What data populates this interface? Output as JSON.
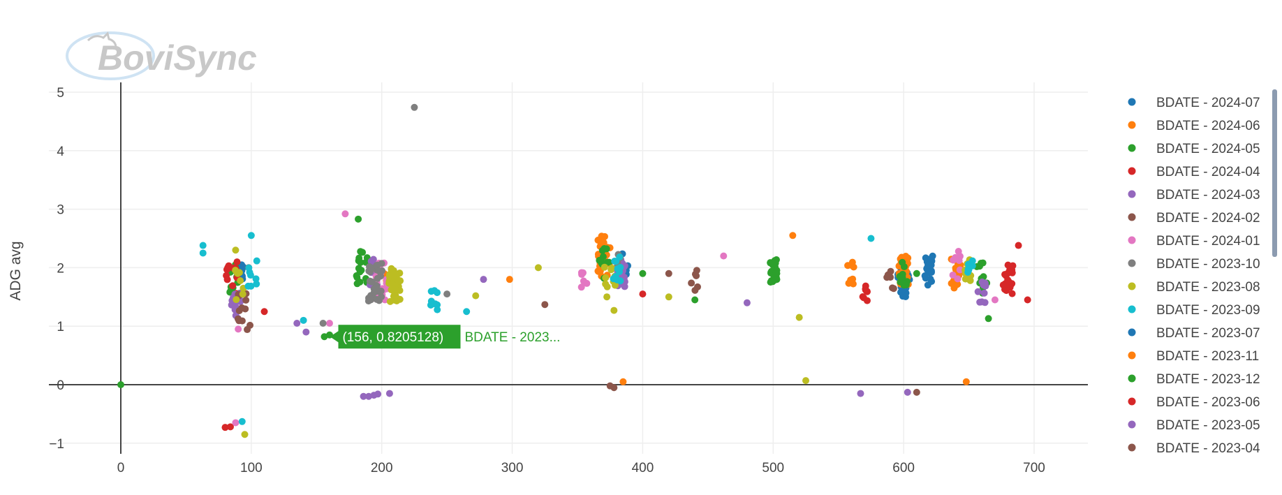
{
  "logo": {
    "text": "BoviSync"
  },
  "chart_data": {
    "type": "scatter",
    "title": "",
    "xlabel": "",
    "ylabel": "ADG avg",
    "xlim": [
      -70,
      740
    ],
    "ylim": [
      -1.2,
      5.2
    ],
    "xticks": [
      0,
      100,
      200,
      300,
      400,
      500,
      600,
      700
    ],
    "yticks": [
      -1,
      0,
      1,
      2,
      3,
      4,
      5
    ],
    "ytick_labels": [
      "−1",
      "0",
      "1",
      "2",
      "3",
      "4",
      "5"
    ],
    "grid": true,
    "legend_position": "right",
    "series": [
      {
        "name": "BDATE - 2024-07",
        "color": "#1f77b4",
        "clusters": [
          [
            92,
            1.9,
            0.15,
            14
          ],
          [
            385,
            2.05,
            0.25,
            8
          ],
          [
            600,
            1.8,
            0.3,
            26
          ],
          [
            620,
            1.95,
            0.25,
            22
          ]
        ]
      },
      {
        "name": "BDATE - 2024-06",
        "color": "#ff7f0e",
        "clusters": [
          [
            370,
            2.2,
            0.35,
            28
          ],
          [
            600,
            1.95,
            0.25,
            40
          ],
          [
            640,
            1.9,
            0.25,
            26
          ],
          [
            200,
            1.9,
            0.4,
            8
          ],
          [
            560,
            1.9,
            0.2,
            8
          ]
        ],
        "points": [
          [
            648,
            0.05
          ],
          [
            385,
            0.05
          ],
          [
            515,
            2.55
          ],
          [
            298,
            1.8
          ]
        ]
      },
      {
        "name": "BDATE - 2024-05",
        "color": "#2ca02c",
        "clusters": [
          [
            88,
            1.8,
            0.3,
            10
          ],
          [
            185,
            2.0,
            0.3,
            16
          ],
          [
            370,
            2.1,
            0.3,
            12
          ],
          [
            500,
            1.95,
            0.2,
            24
          ],
          [
            600,
            1.9,
            0.2,
            12
          ],
          [
            660,
            1.85,
            0.3,
            10
          ]
        ],
        "points": [
          [
            0,
            0.0
          ],
          [
            182,
            2.83
          ],
          [
            665,
            1.13
          ],
          [
            440,
            1.45
          ],
          [
            610,
            1.9
          ],
          [
            160,
            0.85
          ],
          [
            400,
            1.9
          ]
        ]
      },
      {
        "name": "BDATE - 2024-04",
        "color": "#d62728",
        "clusters": [
          [
            85,
            1.75,
            0.35,
            14
          ],
          [
            680,
            1.8,
            0.25,
            20
          ],
          [
            570,
            1.55,
            0.15,
            8
          ]
        ],
        "points": [
          [
            80,
            -0.73
          ],
          [
            84,
            -0.72
          ],
          [
            110,
            1.25
          ],
          [
            400,
            1.55
          ],
          [
            688,
            2.38
          ],
          [
            695,
            1.45
          ]
        ]
      },
      {
        "name": "BDATE - 2024-03",
        "color": "#9467bd",
        "clusters": [
          [
            88,
            1.35,
            0.25,
            14
          ],
          [
            383,
            1.9,
            0.25,
            22
          ],
          [
            660,
            1.6,
            0.2,
            10
          ],
          [
            196,
            1.9,
            0.35,
            12
          ]
        ],
        "points": [
          [
            190,
            -0.2
          ],
          [
            194,
            -0.18
          ],
          [
            197,
            -0.16
          ],
          [
            206,
            -0.15
          ],
          [
            186,
            -0.2
          ],
          [
            567,
            -0.15
          ],
          [
            603,
            -0.13
          ],
          [
            480,
            1.4
          ],
          [
            278,
            1.8
          ],
          [
            135,
            1.05
          ],
          [
            142,
            0.9
          ]
        ]
      },
      {
        "name": "BDATE - 2024-02",
        "color": "#8c564b",
        "clusters": [
          [
            95,
            1.25,
            0.35,
            12
          ],
          [
            590,
            1.8,
            0.2,
            6
          ],
          [
            440,
            1.8,
            0.2,
            6
          ]
        ],
        "points": [
          [
            375,
            -0.02
          ],
          [
            378,
            -0.05
          ],
          [
            610,
            -0.13
          ],
          [
            325,
            1.37
          ],
          [
            98,
            2.0
          ],
          [
            420,
            1.9
          ]
        ]
      },
      {
        "name": "BDATE - 2024-01",
        "color": "#e377c2",
        "clusters": [
          [
            200,
            1.8,
            0.35,
            26
          ],
          [
            355,
            1.85,
            0.2,
            6
          ],
          [
            640,
            2.05,
            0.25,
            8
          ]
        ],
        "points": [
          [
            172,
            2.92
          ],
          [
            88,
            -0.65
          ],
          [
            90,
            0.95
          ],
          [
            670,
            1.45
          ],
          [
            462,
            2.2
          ],
          [
            160,
            1.05
          ]
        ]
      },
      {
        "name": "BDATE - 2023-10",
        "color": "#7f7f7f",
        "clusters": [
          [
            195,
            1.75,
            0.35,
            30
          ],
          [
            380,
            2.05,
            0.2,
            6
          ]
        ],
        "points": [
          [
            225,
            4.74
          ],
          [
            155,
            1.05
          ],
          [
            250,
            1.55
          ]
        ]
      },
      {
        "name": "BDATE - 2023-08",
        "color": "#bcbd22",
        "clusters": [
          [
            210,
            1.7,
            0.3,
            40
          ],
          [
            375,
            1.8,
            0.3,
            12
          ],
          [
            92,
            1.7,
            0.3,
            8
          ],
          [
            650,
            1.95,
            0.2,
            10
          ]
        ],
        "points": [
          [
            95,
            -0.85
          ],
          [
            525,
            0.07
          ],
          [
            520,
            1.15
          ],
          [
            378,
            1.27
          ],
          [
            320,
            2.0
          ],
          [
            272,
            1.52
          ],
          [
            88,
            2.3
          ],
          [
            420,
            1.5
          ]
        ]
      },
      {
        "name": "BDATE - 2023-09",
        "color": "#17becf",
        "clusters": [
          [
            100,
            1.85,
            0.3,
            8
          ],
          [
            380,
            2.0,
            0.25,
            10
          ],
          [
            650,
            2.0,
            0.2,
            6
          ],
          [
            240,
            1.45,
            0.2,
            8
          ]
        ],
        "points": [
          [
            63,
            2.38
          ],
          [
            63,
            2.25
          ],
          [
            100,
            2.55
          ],
          [
            93,
            -0.63
          ],
          [
            575,
            2.5
          ],
          [
            265,
            1.25
          ],
          [
            140,
            1.1
          ]
        ]
      }
    ]
  },
  "legend": {
    "items": [
      {
        "label": "BDATE - 2024-07",
        "color": "#1f77b4"
      },
      {
        "label": "BDATE - 2024-06",
        "color": "#ff7f0e"
      },
      {
        "label": "BDATE - 2024-05",
        "color": "#2ca02c"
      },
      {
        "label": "BDATE - 2024-04",
        "color": "#d62728"
      },
      {
        "label": "BDATE - 2024-03",
        "color": "#9467bd"
      },
      {
        "label": "BDATE - 2024-02",
        "color": "#8c564b"
      },
      {
        "label": "BDATE - 2024-01",
        "color": "#e377c2"
      },
      {
        "label": "BDATE - 2023-10",
        "color": "#7f7f7f"
      },
      {
        "label": "BDATE - 2023-08",
        "color": "#bcbd22"
      },
      {
        "label": "BDATE - 2023-09",
        "color": "#17becf"
      },
      {
        "label": "BDATE - 2023-07",
        "color": "#1f77b4"
      },
      {
        "label": "BDATE - 2023-11",
        "color": "#ff7f0e"
      },
      {
        "label": "BDATE - 2023-12",
        "color": "#2ca02c"
      },
      {
        "label": "BDATE - 2023-06",
        "color": "#d62728"
      },
      {
        "label": "BDATE - 2023-05",
        "color": "#9467bd"
      },
      {
        "label": "BDATE - 2023-04",
        "color": "#8c564b"
      }
    ]
  },
  "hover": {
    "x": 156,
    "y": 0.8205128,
    "label": "(156, 0.8205128)",
    "series_label": "BDATE - 2023...",
    "color": "#2ca02c"
  }
}
